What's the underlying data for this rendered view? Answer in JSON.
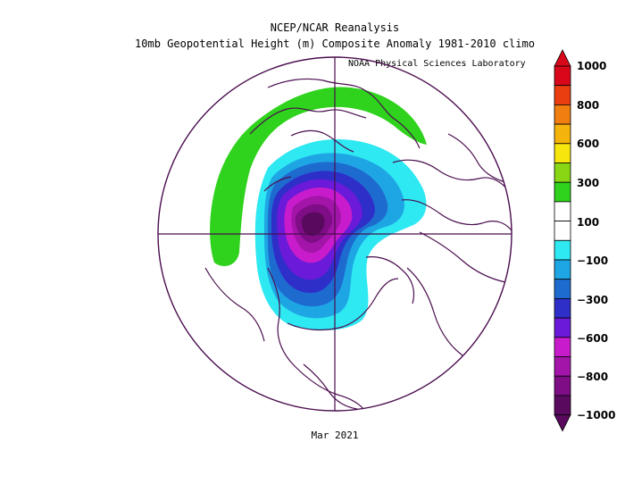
{
  "header": {
    "title": "NCEP/NCAR Reanalysis",
    "subtitle": "10mb Geopotential Height (m) Composite Anomaly 1981-2010 climo",
    "credit": "NOAA Physical Sciences Laboratory"
  },
  "footer": {
    "period": "Mar 2021"
  },
  "colorbar": {
    "colors": [
      "#5a0a5e",
      "#7e0d86",
      "#a315a8",
      "#c81ccc",
      "#6a1ad8",
      "#2e2ec8",
      "#1e6bd0",
      "#1ea6e4",
      "#2ee8f2",
      "#ffffff",
      "#ffffff",
      "#2fd21c",
      "#88d614",
      "#f6e60e",
      "#f5b40c",
      "#f07e10",
      "#ea3e10",
      "#d8081a"
    ],
    "labels": [
      {
        "text": "1000"
      },
      {
        "text": "800"
      },
      {
        "text": "600"
      },
      {
        "text": "300"
      },
      {
        "text": "100"
      },
      {
        "text": "−100"
      },
      {
        "text": "−300"
      },
      {
        "text": "−600"
      },
      {
        "text": "−800"
      },
      {
        "text": "−1000"
      }
    ]
  }
}
